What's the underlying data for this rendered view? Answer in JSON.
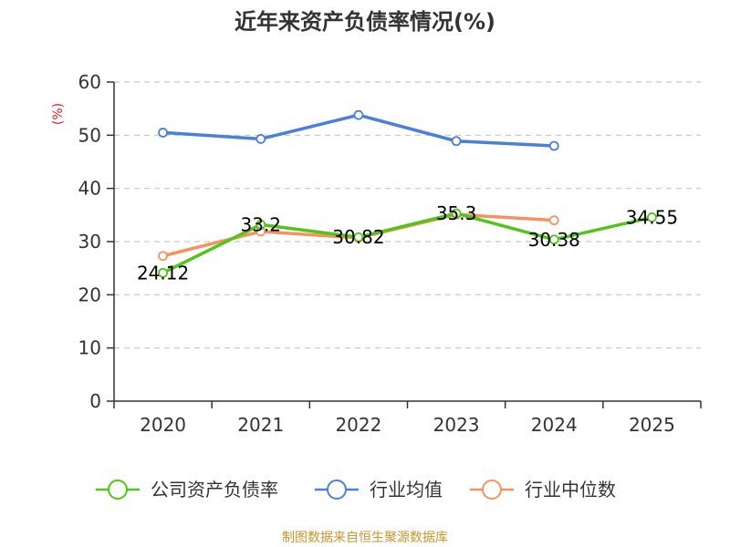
{
  "title": "近年来资产负债率情况(%)",
  "y_unit_label": "(%)",
  "source": "制图数据来自恒生聚源数据库",
  "chart_data": {
    "type": "line",
    "title": "近年来资产负债率情况(%)",
    "ylabel": "(%)",
    "ylim": [
      0,
      60
    ],
    "yticks": [
      "0",
      "10",
      "20",
      "30",
      "40",
      "50",
      "60"
    ],
    "categories": [
      "2020",
      "2021",
      "2022",
      "2023",
      "2024",
      "2025"
    ],
    "grid": true,
    "legend_position": "bottom",
    "series": [
      {
        "name": "公司资产负债率",
        "color": "#52c41a",
        "values": [
          24.12,
          33.2,
          30.82,
          35.3,
          30.38,
          34.55
        ],
        "labels": [
          "24.12",
          "33.2",
          "30.82",
          "35.3",
          "30.38",
          "34.55"
        ]
      },
      {
        "name": "行业均值",
        "color": "#4a7fdc",
        "values": [
          50.5,
          49.3,
          53.8,
          48.9,
          48.0,
          null
        ]
      },
      {
        "name": "行业中位数",
        "color": "#f5925e",
        "values": [
          27.3,
          31.9,
          30.7,
          35.1,
          34.0,
          null
        ]
      }
    ]
  }
}
